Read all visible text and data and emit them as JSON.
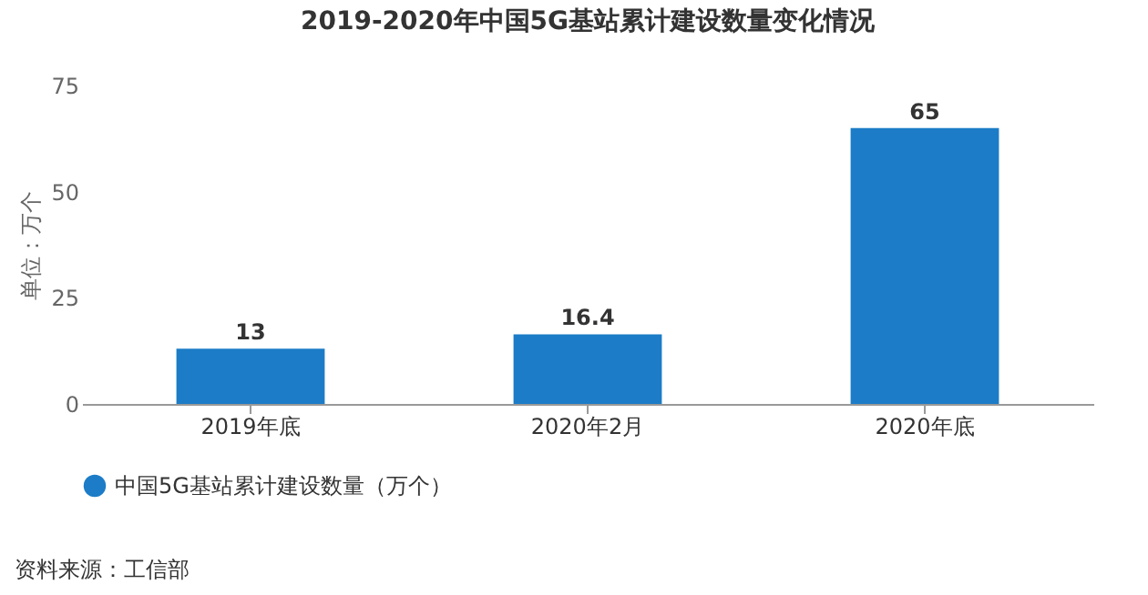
{
  "chart_data": {
    "type": "bar",
    "title": "2019-2020年中国5G基站累计建设数量变化情况",
    "ylabel": "单位：万个",
    "categories": [
      "2019年底",
      "2020年2月",
      "2020年底"
    ],
    "series": [
      {
        "name": "中国5G基站累计建设数量（万个）",
        "color": "#1c7cc7",
        "values": [
          13,
          16.4,
          65
        ]
      }
    ],
    "ylim": [
      0,
      75
    ],
    "yticks": [
      0,
      25,
      50,
      75
    ],
    "data_labels": true,
    "legend": "bottom",
    "grid": false,
    "annotations": [
      "资料来源：工信部"
    ]
  }
}
